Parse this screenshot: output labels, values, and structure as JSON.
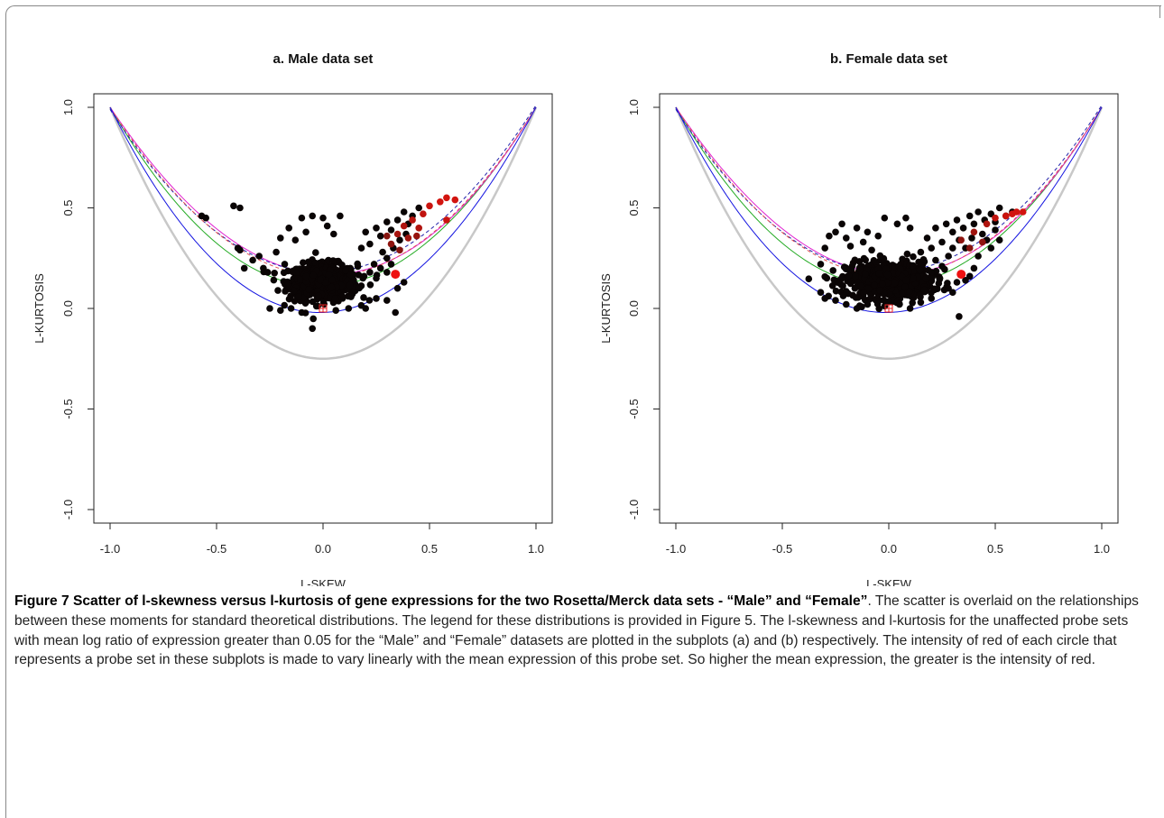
{
  "chart_data": [
    {
      "type": "scatter",
      "title": "a. Male data set",
      "xlabel": "L-SKEW",
      "ylabel": "L-KURTOSIS",
      "xlim": [
        -1.05,
        1.05
      ],
      "ylim": [
        -1.05,
        1.05
      ],
      "xticks": [
        "-1.0",
        "-0.5",
        "0.0",
        "0.5",
        "1.0"
      ],
      "yticks": [
        "-1.0",
        "-0.5",
        "0.0",
        "0.5",
        "1.0"
      ],
      "grid": false,
      "cluster": {
        "cx": 0.0,
        "cy": 0.13,
        "sx": 0.08,
        "sy": 0.045,
        "n": 650
      },
      "points": [
        [
          -0.57,
          0.46
        ],
        [
          -0.55,
          0.45
        ],
        [
          -0.42,
          0.51
        ],
        [
          -0.39,
          0.5
        ],
        [
          -0.4,
          0.3
        ],
        [
          -0.39,
          0.29
        ],
        [
          -0.37,
          0.2
        ],
        [
          -0.33,
          0.24
        ],
        [
          -0.3,
          0.26
        ],
        [
          -0.28,
          0.2
        ],
        [
          -0.26,
          0.18
        ],
        [
          -0.22,
          0.28
        ],
        [
          -0.2,
          0.35
        ],
        [
          -0.18,
          0.22
        ],
        [
          -0.16,
          0.4
        ],
        [
          -0.13,
          0.34
        ],
        [
          -0.1,
          0.45
        ],
        [
          -0.08,
          0.38
        ],
        [
          -0.05,
          0.46
        ],
        [
          0.0,
          0.45
        ],
        [
          0.02,
          0.41
        ],
        [
          0.05,
          0.37
        ],
        [
          0.08,
          0.46
        ],
        [
          -0.25,
          -0.0
        ],
        [
          -0.2,
          -0.01
        ],
        [
          -0.15,
          0.0
        ],
        [
          -0.1,
          -0.02
        ],
        [
          -0.05,
          -0.1
        ],
        [
          0.06,
          -0.01
        ],
        [
          0.12,
          0.0
        ],
        [
          0.2,
          0.0
        ],
        [
          0.25,
          0.05
        ],
        [
          0.3,
          0.04
        ],
        [
          0.35,
          0.1
        ],
        [
          0.38,
          0.13
        ],
        [
          0.34,
          -0.02
        ],
        [
          0.18,
          0.3
        ],
        [
          0.2,
          0.38
        ],
        [
          0.22,
          0.32
        ],
        [
          0.25,
          0.4
        ],
        [
          0.27,
          0.36
        ],
        [
          0.3,
          0.43
        ],
        [
          0.32,
          0.39
        ],
        [
          0.35,
          0.44
        ],
        [
          0.38,
          0.48
        ],
        [
          0.4,
          0.42
        ],
        [
          0.42,
          0.46
        ],
        [
          0.45,
          0.5
        ],
        [
          0.28,
          0.28
        ],
        [
          0.3,
          0.25
        ],
        [
          0.33,
          0.3
        ],
        [
          0.36,
          0.34
        ],
        [
          0.39,
          0.37
        ],
        [
          0.24,
          0.22
        ],
        [
          0.27,
          0.2
        ],
        [
          0.22,
          0.18
        ],
        [
          0.25,
          0.15
        ],
        [
          0.3,
          0.18
        ],
        [
          0.32,
          0.22
        ]
      ],
      "red_points": [
        [
          0.35,
          0.37,
          0.75
        ],
        [
          0.38,
          0.41,
          0.8
        ],
        [
          0.42,
          0.44,
          0.85
        ],
        [
          0.47,
          0.47,
          0.9
        ],
        [
          0.5,
          0.51,
          0.95
        ],
        [
          0.55,
          0.53,
          1.0
        ],
        [
          0.58,
          0.55,
          1.0
        ],
        [
          0.62,
          0.54,
          1.0
        ],
        [
          0.58,
          0.44,
          0.95
        ],
        [
          0.45,
          0.4,
          0.8
        ],
        [
          0.4,
          0.35,
          0.7
        ],
        [
          0.32,
          0.32,
          0.6
        ],
        [
          0.36,
          0.29,
          0.55
        ],
        [
          0.3,
          0.36,
          0.55
        ],
        [
          0.44,
          0.36,
          0.65
        ]
      ],
      "reference_point": [
        0.34,
        0.17
      ],
      "marker_point": [
        0.0,
        0.0
      ]
    },
    {
      "type": "scatter",
      "title": "b. Female data set",
      "xlabel": "L-SKEW",
      "ylabel": "L-KURTOSIS",
      "xlim": [
        -1.05,
        1.05
      ],
      "ylim": [
        -1.05,
        1.05
      ],
      "xticks": [
        "-1.0",
        "-0.5",
        "0.0",
        "0.5",
        "1.0"
      ],
      "yticks": [
        "-1.0",
        "-0.5",
        "0.0",
        "0.5",
        "1.0"
      ],
      "grid": false,
      "cluster": {
        "cx": 0.0,
        "cy": 0.14,
        "sx": 0.1,
        "sy": 0.045,
        "n": 650
      },
      "points": [
        [
          -0.32,
          0.22
        ],
        [
          -0.3,
          0.3
        ],
        [
          -0.28,
          0.36
        ],
        [
          -0.25,
          0.38
        ],
        [
          -0.22,
          0.42
        ],
        [
          -0.2,
          0.35
        ],
        [
          -0.18,
          0.31
        ],
        [
          -0.15,
          0.4
        ],
        [
          -0.12,
          0.33
        ],
        [
          -0.1,
          0.38
        ],
        [
          -0.08,
          0.29
        ],
        [
          -0.05,
          0.36
        ],
        [
          -0.02,
          0.45
        ],
        [
          0.04,
          0.42
        ],
        [
          0.08,
          0.45
        ],
        [
          0.1,
          0.4
        ],
        [
          -0.32,
          0.08
        ],
        [
          -0.3,
          0.05
        ],
        [
          -0.25,
          0.04
        ],
        [
          -0.2,
          0.02
        ],
        [
          -0.15,
          0.0
        ],
        [
          -0.1,
          0.02
        ],
        [
          0.05,
          0.02
        ],
        [
          0.1,
          0.0
        ],
        [
          0.15,
          0.03
        ],
        [
          0.2,
          0.05
        ],
        [
          0.28,
          0.1
        ],
        [
          0.32,
          0.13
        ],
        [
          0.3,
          0.08
        ],
        [
          0.36,
          0.14
        ],
        [
          0.33,
          -0.04
        ],
        [
          0.4,
          0.2
        ],
        [
          0.42,
          0.26
        ],
        [
          0.38,
          0.16
        ],
        [
          0.15,
          0.28
        ],
        [
          0.18,
          0.35
        ],
        [
          0.2,
          0.3
        ],
        [
          0.22,
          0.4
        ],
        [
          0.25,
          0.33
        ],
        [
          0.27,
          0.42
        ],
        [
          0.3,
          0.38
        ],
        [
          0.32,
          0.44
        ],
        [
          0.35,
          0.4
        ],
        [
          0.38,
          0.46
        ],
        [
          0.4,
          0.42
        ],
        [
          0.42,
          0.48
        ],
        [
          0.45,
          0.44
        ],
        [
          0.48,
          0.47
        ],
        [
          0.5,
          0.43
        ],
        [
          0.52,
          0.5
        ],
        [
          0.55,
          0.46
        ],
        [
          0.58,
          0.48
        ],
        [
          0.22,
          0.24
        ],
        [
          0.25,
          0.21
        ],
        [
          0.28,
          0.26
        ],
        [
          0.3,
          0.3
        ],
        [
          0.33,
          0.34
        ],
        [
          0.36,
          0.3
        ],
        [
          0.39,
          0.35
        ],
        [
          0.44,
          0.37
        ],
        [
          0.46,
          0.34
        ],
        [
          0.5,
          0.39
        ],
        [
          0.48,
          0.3
        ],
        [
          0.52,
          0.34
        ],
        [
          0.2,
          0.18
        ],
        [
          0.24,
          0.15
        ]
      ],
      "red_points": [
        [
          0.5,
          0.45,
          0.9
        ],
        [
          0.55,
          0.46,
          0.95
        ],
        [
          0.58,
          0.47,
          1.0
        ],
        [
          0.6,
          0.48,
          1.0
        ],
        [
          0.63,
          0.48,
          1.0
        ],
        [
          0.46,
          0.42,
          0.8
        ],
        [
          0.4,
          0.38,
          0.7
        ],
        [
          0.34,
          0.34,
          0.6
        ],
        [
          0.38,
          0.3,
          0.55
        ],
        [
          0.44,
          0.33,
          0.6
        ]
      ],
      "reference_point": [
        0.34,
        0.17
      ],
      "marker_point": [
        0.0,
        0.0
      ]
    }
  ],
  "caption": {
    "bold": "Figure 7 Scatter of l-skewness versus l-kurtosis of gene expressions for the two Rosetta/Merck data sets - “Male” and “Female”",
    "text": ". The scatter is overlaid on the relationships between these moments for standard theoretical distributions. The legend for these distributions is provided in Figure 5. The l-skewness and l-kurtosis for the unaffected probe sets with mean log ratio of expression greater than 0.05 for the “Male” and “Female” datasets are plotted in the subplots (a) and (b) respectively. The intensity of red of each circle that represents a probe set in these subplots is made to vary linearly with the mean expression of this probe set. So higher the mean expression, the greater is the intensity of red."
  },
  "colors": {
    "points": "#0a0505",
    "red_high": "#cc1a1a",
    "lower_bound": "#c8c8c8",
    "upper_bound": "#1414e0",
    "green_curve": "#22aa22",
    "magenta_curve": "#e020d0",
    "dashed_blue": "#2222aa",
    "dashed_red": "#e05050"
  }
}
